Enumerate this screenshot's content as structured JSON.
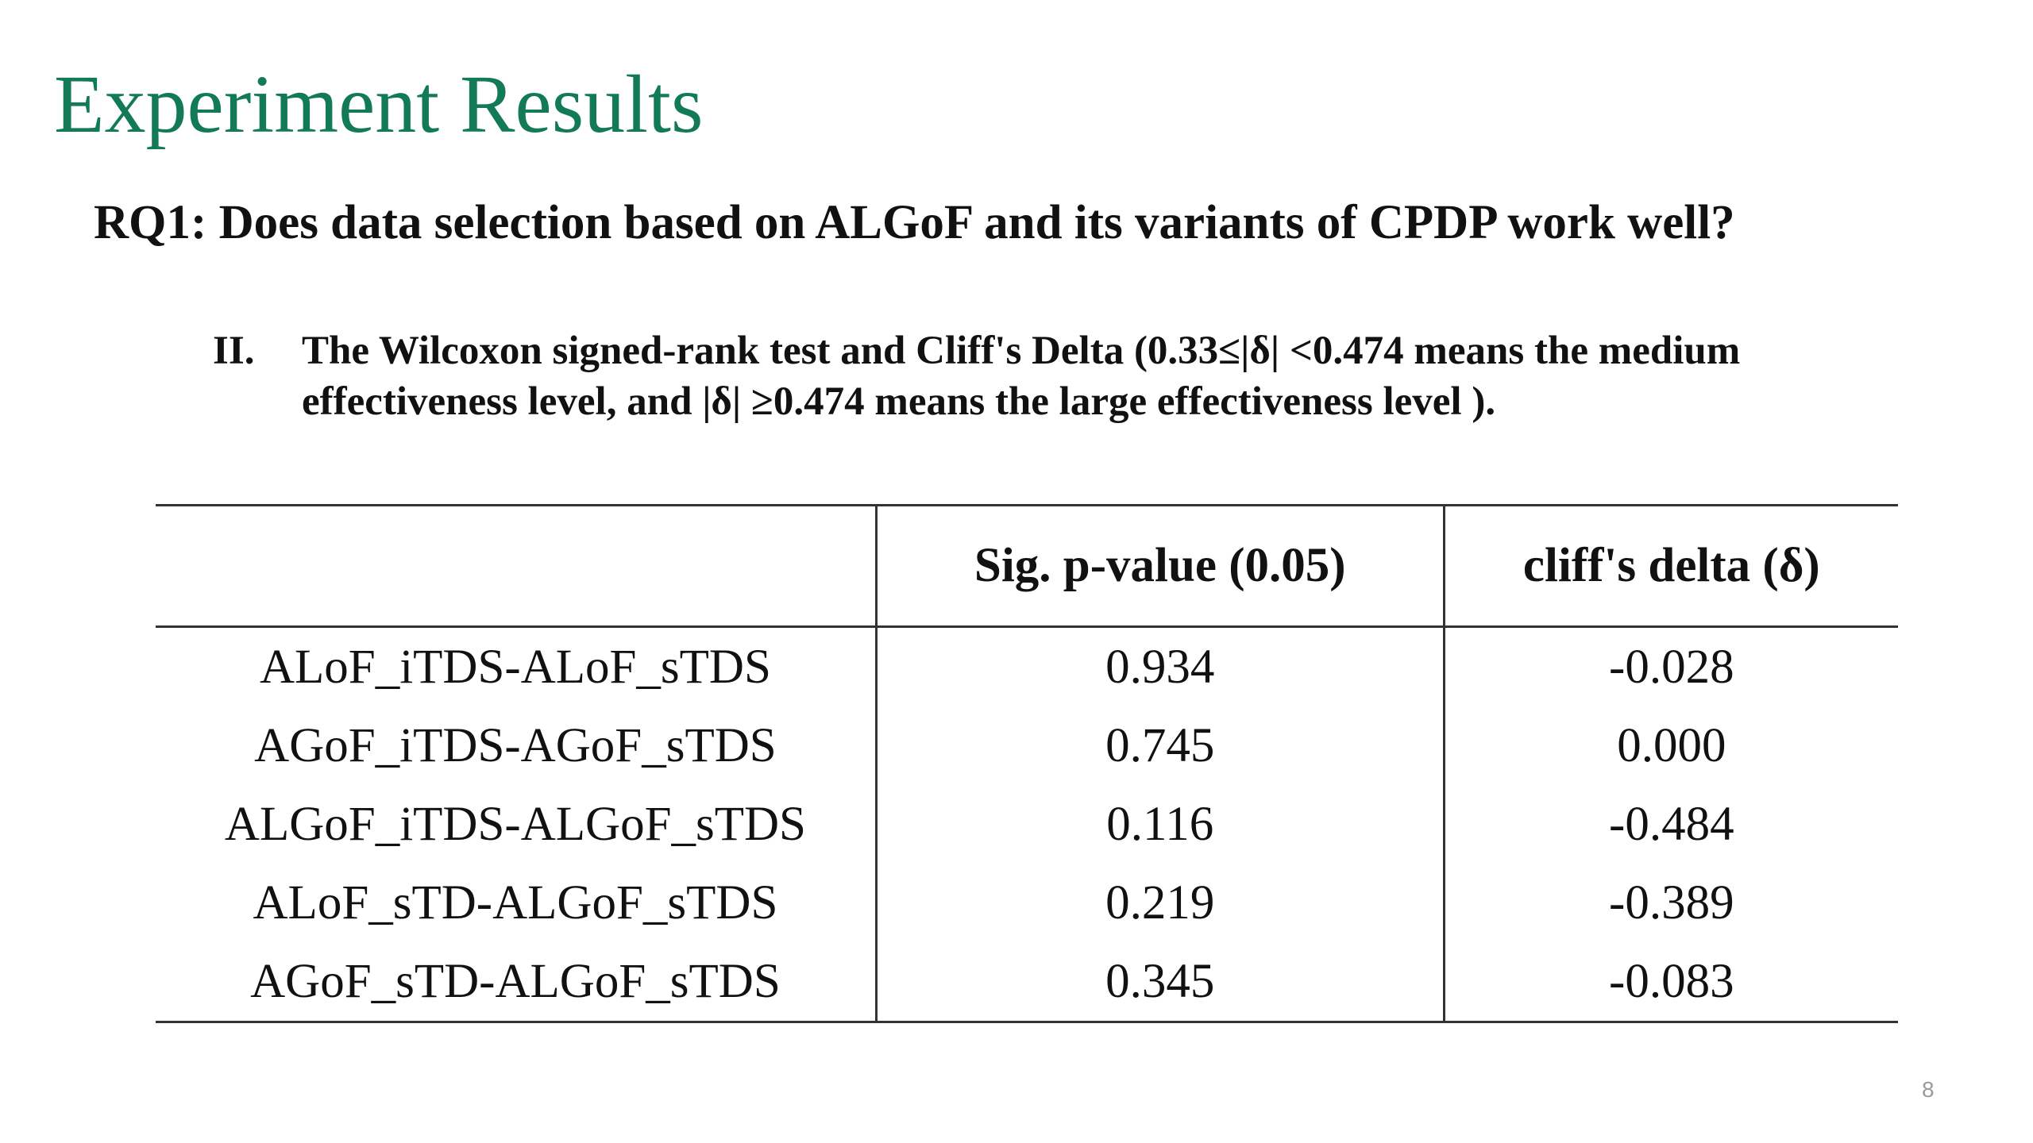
{
  "slide": {
    "title": "Experiment Results",
    "question": "RQ1: Does data selection based on ALGoF and its variants of CPDP work well?",
    "note": {
      "marker": "II.",
      "text": "The Wilcoxon signed-rank test and Cliff's Delta (0.33≤|δ| <0.474 means the medium effectiveness level, and |δ| ≥0.474 means the large effectiveness level )."
    },
    "table": {
      "headers": [
        "",
        "Sig. p-value (0.05)",
        "cliff's delta (δ)"
      ],
      "rows": [
        {
          "label": "ALoF_iTDS-ALoF_sTDS",
          "p_value": "0.934",
          "delta": "-0.028"
        },
        {
          "label": "AGoF_iTDS-AGoF_sTDS",
          "p_value": "0.745",
          "delta": "0.000"
        },
        {
          "label": "ALGoF_iTDS-ALGoF_sTDS",
          "p_value": "0.116",
          "delta": "-0.484"
        },
        {
          "label": "ALoF_sTD-ALGoF_sTDS",
          "p_value": "0.219",
          "delta": "-0.389"
        },
        {
          "label": "AGoF_sTD-ALGoF_sTDS",
          "p_value": "0.345",
          "delta": "-0.083"
        }
      ]
    },
    "page_number": "8",
    "colors": {
      "title": "#127a56",
      "text": "#111111",
      "rule": "#333333",
      "page_number": "#9a9a9a"
    }
  }
}
